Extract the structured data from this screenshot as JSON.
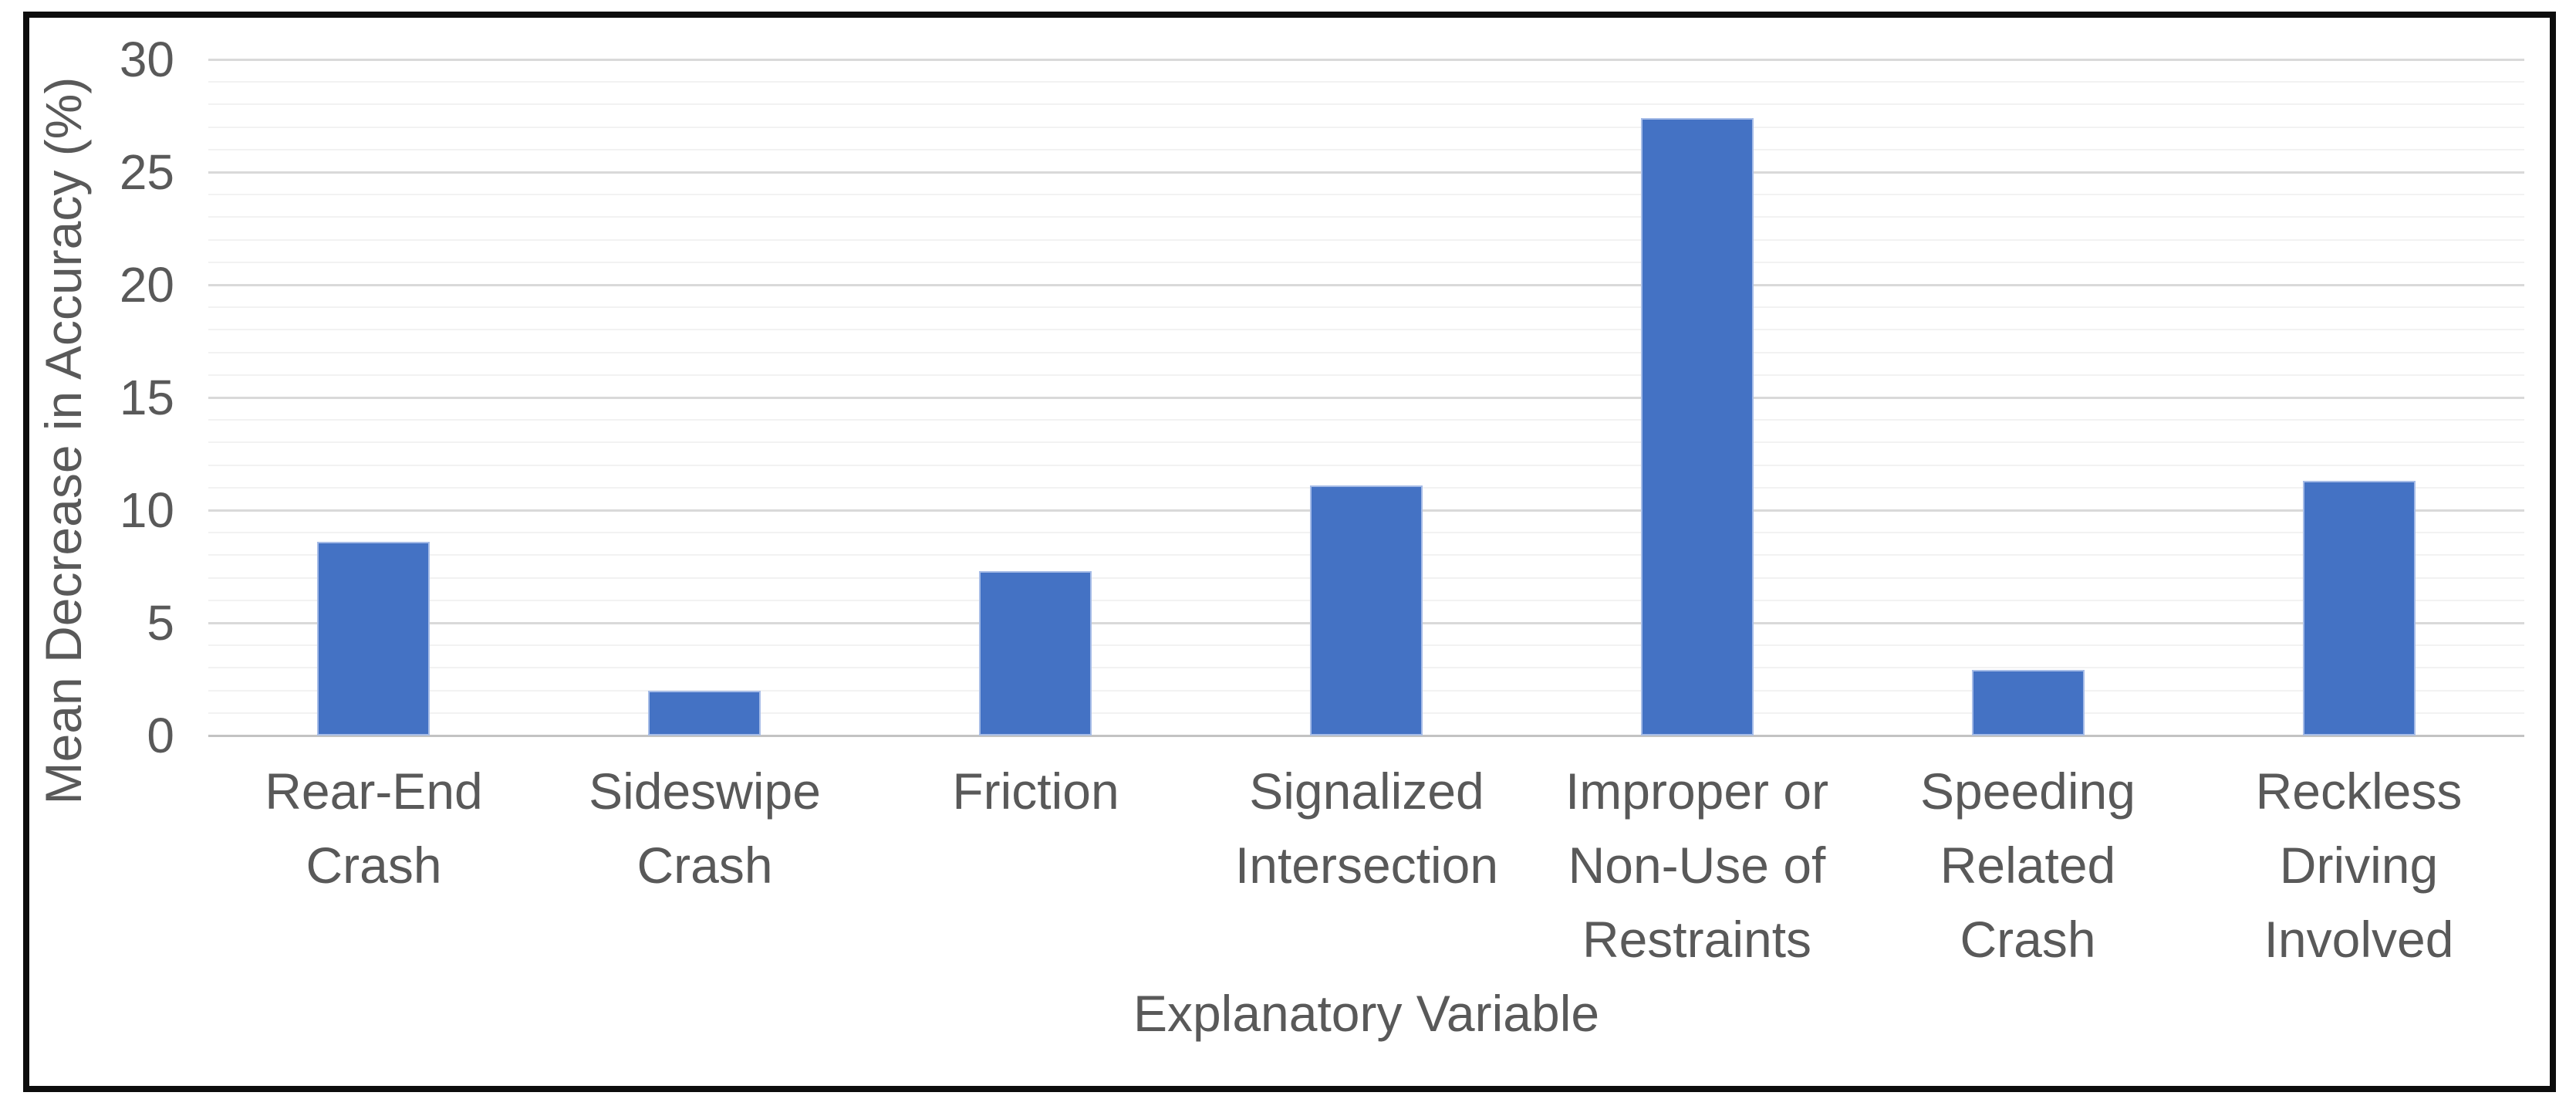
{
  "chart_data": {
    "type": "bar",
    "categories": [
      "Rear-End Crash",
      "Sideswipe Crash",
      "Friction",
      "Signalized Intersection",
      "Improper or Non-Use of Restraints",
      "Speeding Related Crash",
      "Reckless Driving Involved"
    ],
    "category_label_lines": [
      [
        "Rear-End",
        "Crash"
      ],
      [
        "Sideswipe",
        "Crash"
      ],
      [
        "Friction"
      ],
      [
        "Signalized",
        "Intersection"
      ],
      [
        "Improper or",
        "Non-Use of",
        "Restraints"
      ],
      [
        "Speeding",
        "Related",
        "Crash"
      ],
      [
        "Reckless",
        "Driving",
        "Involved"
      ]
    ],
    "values": [
      8.6,
      2.0,
      7.3,
      11.1,
      27.4,
      2.9,
      11.3
    ],
    "xlabel": "Explanatory Variable",
    "ylabel": "Mean Decrease in Accuracy (%)",
    "ylim": [
      0,
      30
    ],
    "y_tick_labels": [
      "0",
      "5",
      "10",
      "15",
      "20",
      "25",
      "30"
    ],
    "y_major_tick_step": 5,
    "y_minor_tick_step": 1,
    "grid": "horizontal, minor every 1 unit, major every 5 units",
    "legend": "none",
    "series_count": 1,
    "colors": {
      "bar_fill": "#4472C4",
      "bar_edge": "#a6bce7",
      "axis_text": "#595959",
      "major_gridline": "#d9d9d9",
      "minor_gridline": "#f2f2f2",
      "zero_line": "#c3c3c3",
      "chart_border": "#0d0d0d",
      "background": "#ffffff"
    }
  }
}
